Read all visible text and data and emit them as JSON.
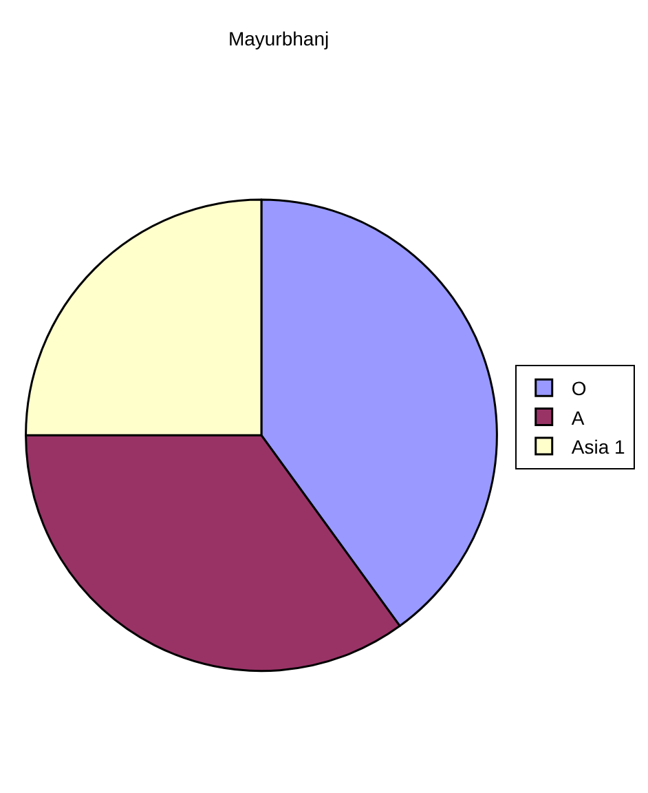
{
  "chart_data": {
    "type": "pie",
    "title": "Mayurbhanj",
    "categories": [
      "O",
      "A",
      "Asia 1"
    ],
    "values": [
      40,
      35,
      25
    ],
    "colors": [
      "#9999ff",
      "#993366",
      "#ffffcc"
    ],
    "legend": "right"
  }
}
